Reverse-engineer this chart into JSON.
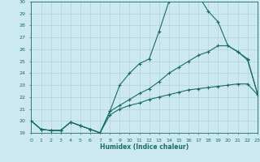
{
  "title": "",
  "xlabel": "Humidex (Indice chaleur)",
  "bg_color": "#cce8f0",
  "grid_color": "#aaccd8",
  "line_color": "#1a6b6b",
  "xlim": [
    0,
    23
  ],
  "ylim": [
    19,
    30
  ],
  "xticks": [
    0,
    1,
    2,
    3,
    4,
    5,
    6,
    7,
    8,
    9,
    10,
    11,
    12,
    13,
    14,
    15,
    16,
    17,
    18,
    19,
    20,
    21,
    22,
    23
  ],
  "yticks": [
    19,
    20,
    21,
    22,
    23,
    24,
    25,
    26,
    27,
    28,
    29,
    30
  ],
  "curve1_x": [
    0,
    1,
    2,
    3,
    4,
    5,
    6,
    7,
    8,
    9,
    10,
    11,
    12,
    13,
    14,
    15,
    16,
    17,
    18,
    19,
    20,
    21,
    22,
    23
  ],
  "curve1_y": [
    20.0,
    19.3,
    19.2,
    19.2,
    19.9,
    19.6,
    19.3,
    19.0,
    20.8,
    23.0,
    24.0,
    24.8,
    25.2,
    27.5,
    30.0,
    30.2,
    30.3,
    30.5,
    29.2,
    28.3,
    26.3,
    25.8,
    25.1,
    22.3
  ],
  "curve2_x": [
    0,
    1,
    2,
    3,
    4,
    5,
    6,
    7,
    8,
    9,
    10,
    11,
    12,
    13,
    14,
    15,
    16,
    17,
    18,
    19,
    20,
    21,
    22,
    23
  ],
  "curve2_y": [
    20.0,
    19.3,
    19.2,
    19.2,
    19.9,
    19.6,
    19.3,
    19.0,
    20.5,
    21.0,
    21.3,
    21.5,
    21.8,
    22.0,
    22.2,
    22.4,
    22.6,
    22.7,
    22.8,
    22.9,
    23.0,
    23.1,
    23.1,
    22.2
  ],
  "curve3_x": [
    0,
    1,
    2,
    3,
    4,
    5,
    6,
    7,
    8,
    9,
    10,
    11,
    12,
    13,
    14,
    15,
    16,
    17,
    18,
    19,
    20,
    21,
    22,
    23
  ],
  "curve3_y": [
    20.0,
    19.3,
    19.2,
    19.2,
    19.9,
    19.6,
    19.3,
    19.0,
    20.8,
    21.3,
    21.8,
    22.3,
    22.7,
    23.3,
    24.0,
    24.5,
    25.0,
    25.5,
    25.8,
    26.3,
    26.3,
    25.8,
    25.2,
    22.3
  ],
  "lw": 0.8,
  "ms": 3.0
}
